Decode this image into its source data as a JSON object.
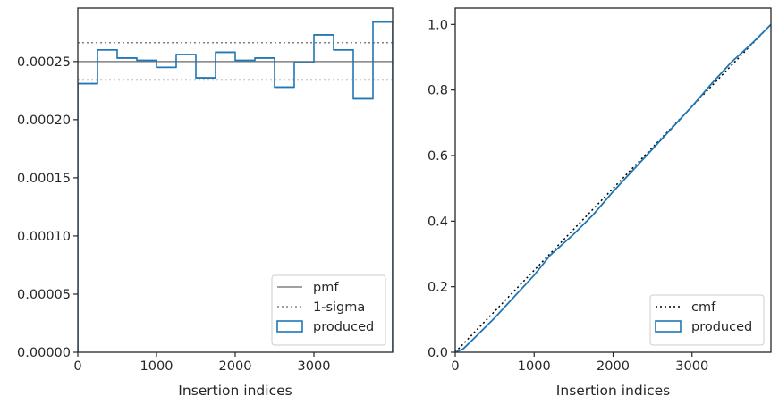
{
  "chart_data": [
    {
      "type": "histogram",
      "xlabel": "Insertion indices",
      "ylabel": "",
      "xlim": [
        0,
        4000
      ],
      "ylim": [
        0,
        0.000296
      ],
      "xticks": [
        0,
        1000,
        2000,
        3000
      ],
      "xtick_labels": [
        "0",
        "1000",
        "2000",
        "3000"
      ],
      "yticks": [
        0,
        5e-05,
        0.0001,
        0.00015,
        0.0002,
        0.00025
      ],
      "ytick_labels": [
        "0.00000",
        "0.00005",
        "0.00010",
        "0.00015",
        "0.00020",
        "0.00025"
      ],
      "legend_position": "lower right",
      "series": [
        {
          "name": "pmf",
          "kind": "hline",
          "y": 0.00025,
          "color": "#808080",
          "style": "solid"
        },
        {
          "name": "1-sigma",
          "kind": "hlines",
          "y": [
            0.0002342,
            0.0002662
          ],
          "color": "#808080",
          "style": "dotted"
        },
        {
          "name": "produced",
          "kind": "step",
          "color": "#1f77b4",
          "bin_edges": [
            0,
            250,
            500,
            750,
            1000,
            1250,
            1500,
            1750,
            2000,
            2250,
            2500,
            2750,
            3000,
            3250,
            3500,
            3750,
            4000
          ],
          "values": [
            0.000231,
            0.00026,
            0.000253,
            0.000251,
            0.000245,
            0.000256,
            0.000236,
            0.000258,
            0.000251,
            0.000253,
            0.000228,
            0.000249,
            0.000273,
            0.00026,
            0.000218,
            0.000284
          ]
        }
      ]
    },
    {
      "type": "line",
      "xlabel": "Insertion indices",
      "ylabel": "",
      "xlim": [
        0,
        4000
      ],
      "ylim": [
        0,
        1.05
      ],
      "xticks": [
        0,
        1000,
        2000,
        3000
      ],
      "xtick_labels": [
        "0",
        "1000",
        "2000",
        "3000"
      ],
      "yticks": [
        0,
        0.2,
        0.4,
        0.6,
        0.8,
        1.0
      ],
      "ytick_labels": [
        "0.0",
        "0.2",
        "0.4",
        "0.6",
        "0.8",
        "1.0"
      ],
      "legend_position": "lower right",
      "series": [
        {
          "name": "cmf",
          "kind": "line",
          "color": "#000000",
          "style": "dotted",
          "x": [
            0,
            4000
          ],
          "y": [
            0,
            1.0
          ]
        },
        {
          "name": "produced",
          "kind": "step",
          "color": "#1f77b4",
          "x": [
            0,
            100,
            250,
            500,
            750,
            1000,
            1200,
            1500,
            1750,
            2000,
            2250,
            2500,
            2750,
            3000,
            3250,
            3500,
            3750,
            4000
          ],
          "y": [
            0,
            0.01,
            0.045,
            0.105,
            0.17,
            0.235,
            0.295,
            0.36,
            0.42,
            0.49,
            0.555,
            0.62,
            0.685,
            0.75,
            0.82,
            0.885,
            0.94,
            1.0
          ]
        }
      ]
    }
  ]
}
